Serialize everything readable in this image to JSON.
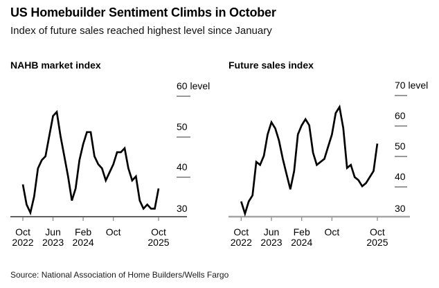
{
  "header": {
    "title": "US Homebuilder Sentiment Climbs in October",
    "subtitle": "Index of future sales reached highest level since January"
  },
  "source": "Source: National Association of Home Builders/Wells Fargo",
  "colors": {
    "line": "#000000",
    "axis_left": "#000000",
    "axis_right": "#a3a3a3",
    "y_tick": "#999999",
    "x_tick": "#8c8c8c",
    "text": "#000000"
  },
  "chart_data": [
    {
      "type": "line",
      "title": "NAHB market index",
      "ylabel_suffix": "level",
      "ylim": [
        30,
        60
      ],
      "yticks": [
        30,
        40,
        50,
        60
      ],
      "x_range": [
        "Oct 2022",
        "Oct 2025"
      ],
      "x_tick_labels": [
        {
          "line1": "Oct",
          "line2": "2022",
          "month_index": 0
        },
        {
          "line1": "Jun",
          "line2": "2023",
          "month_index": 8
        },
        {
          "line1": "Feb",
          "line2": "2024",
          "month_index": 16
        },
        {
          "line1": "Oct",
          "line2": "",
          "month_index": 24
        },
        {
          "line1": "Oct",
          "line2": "2025",
          "month_index": 36
        }
      ],
      "months": [
        "Oct 2022",
        "Nov 2022",
        "Dec 2022",
        "Jan 2023",
        "Feb 2023",
        "Mar 2023",
        "Apr 2023",
        "May 2023",
        "Jun 2023",
        "Jul 2023",
        "Aug 2023",
        "Sep 2023",
        "Oct 2023",
        "Nov 2023",
        "Dec 2023",
        "Jan 2024",
        "Feb 2024",
        "Mar 2024",
        "Apr 2024",
        "May 2024",
        "Jun 2024",
        "Jul 2024",
        "Aug 2024",
        "Sep 2024",
        "Oct 2024",
        "Nov 2024",
        "Dec 2024",
        "Jan 2025",
        "Feb 2025",
        "Mar 2025",
        "Apr 2025",
        "May 2025",
        "Jun 2025",
        "Jul 2025",
        "Aug 2025",
        "Sep 2025",
        "Oct 2025"
      ],
      "values": [
        38,
        33,
        31,
        35,
        42,
        44,
        45,
        50,
        55,
        56,
        50,
        45,
        40,
        34,
        37,
        44,
        48,
        51,
        51,
        45,
        43,
        42,
        39,
        41,
        43,
        46,
        46,
        47,
        42,
        39,
        40,
        34,
        32,
        33,
        32,
        32,
        37
      ]
    },
    {
      "type": "line",
      "title": "Future sales index",
      "ylabel_suffix": "level",
      "ylim": [
        30,
        70
      ],
      "yticks": [
        30,
        40,
        50,
        60,
        70
      ],
      "x_range": [
        "Oct 2022",
        "Oct 2025"
      ],
      "x_tick_labels": [
        {
          "line1": "Oct",
          "line2": "2022",
          "month_index": 0
        },
        {
          "line1": "Jun",
          "line2": "2023",
          "month_index": 8
        },
        {
          "line1": "Feb",
          "line2": "2024",
          "month_index": 16
        },
        {
          "line1": "Oct",
          "line2": "",
          "month_index": 24
        },
        {
          "line1": "Oct",
          "line2": "2025",
          "month_index": 36
        }
      ],
      "months": [
        "Oct 2022",
        "Nov 2022",
        "Dec 2022",
        "Jan 2023",
        "Feb 2023",
        "Mar 2023",
        "Apr 2023",
        "May 2023",
        "Jun 2023",
        "Jul 2023",
        "Aug 2023",
        "Sep 2023",
        "Oct 2023",
        "Nov 2023",
        "Dec 2023",
        "Jan 2024",
        "Feb 2024",
        "Mar 2024",
        "Apr 2024",
        "May 2024",
        "Jun 2024",
        "Jul 2024",
        "Aug 2024",
        "Sep 2024",
        "Oct 2024",
        "Nov 2024",
        "Dec 2024",
        "Jan 2025",
        "Feb 2025",
        "Mar 2025",
        "Apr 2025",
        "May 2025",
        "Jun 2025",
        "Jul 2025",
        "Aug 2025",
        "Sep 2025",
        "Oct 2025"
      ],
      "values": [
        35,
        31,
        35,
        37,
        48,
        47,
        50,
        57,
        61,
        59,
        55,
        49,
        44,
        39,
        45,
        57,
        60,
        62,
        60,
        51,
        47,
        48,
        49,
        53,
        57,
        64,
        66,
        59,
        46,
        47,
        43,
        42,
        40,
        41,
        43,
        45,
        54
      ]
    }
  ]
}
